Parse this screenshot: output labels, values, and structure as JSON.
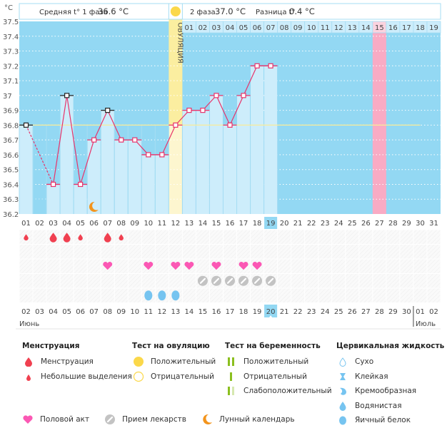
{
  "chart_data": {
    "type": "line",
    "title": "",
    "ylabel": "°C",
    "ylim": [
      36.2,
      37.5
    ],
    "yticks": [
      "37.5",
      "37.4",
      "37.3",
      "37.2",
      "37.1",
      "37",
      "36.9",
      "36.8",
      "36.7",
      "36.6",
      "36.5",
      "36.4",
      "36.3",
      "36.2"
    ],
    "cycle_days": [
      "01",
      "02",
      "03",
      "04",
      "05",
      "06",
      "07",
      "08",
      "09",
      "10",
      "11",
      "12",
      "13",
      "14",
      "15",
      "16",
      "17",
      "18",
      "19",
      "20",
      "21",
      "22",
      "23",
      "24",
      "25",
      "26",
      "27",
      "28",
      "29",
      "30",
      "31"
    ],
    "phase2_days": [
      "01",
      "02",
      "03",
      "04",
      "05",
      "06",
      "07",
      "08",
      "09",
      "10",
      "11",
      "12",
      "13",
      "14",
      "15",
      "16",
      "17",
      "18",
      "19"
    ],
    "calendar_dates": [
      "02",
      "03",
      "04",
      "05",
      "06",
      "07",
      "08",
      "09",
      "10",
      "11",
      "12",
      "13",
      "14",
      "15",
      "16",
      "17",
      "18",
      "19",
      "20",
      "21",
      "22",
      "23",
      "24",
      "25",
      "26",
      "27",
      "28",
      "29",
      "30",
      "01",
      "02"
    ],
    "weekend_dates_idx": [
      0,
      1,
      7,
      8,
      14,
      15,
      21,
      22,
      28,
      29
    ],
    "today_calendar_idx": 18,
    "current_cycle_day_idx": 18,
    "months": [
      {
        "label": "Июнь"
      },
      {
        "label": "Июль"
      }
    ],
    "ovulation_day_idx": 11,
    "ovulation_label": "ОВУЛЯЦИЯ",
    "expected_period_day_idx": 26,
    "coverline": 36.8,
    "temperatures": [
      36.8,
      null,
      36.4,
      37.0,
      36.4,
      36.7,
      36.9,
      36.7,
      36.7,
      36.6,
      36.6,
      36.8,
      36.9,
      36.9,
      37.0,
      36.8,
      37.0,
      37.2,
      37.2
    ],
    "excluded_points_idx": [
      0,
      3,
      6
    ],
    "dashed_segments": [
      [
        0,
        2
      ]
    ],
    "menstruation": [
      {
        "day_idx": 0,
        "type": "spotting"
      },
      {
        "day_idx": 2,
        "type": "menstruation"
      },
      {
        "day_idx": 3,
        "type": "menstruation"
      },
      {
        "day_idx": 4,
        "type": "spotting"
      },
      {
        "day_idx": 6,
        "type": "menstruation"
      },
      {
        "day_idx": 7,
        "type": "spotting"
      }
    ],
    "intercourse_idx": [
      6,
      9,
      11,
      12,
      14,
      16,
      17
    ],
    "medication_idx": [
      13,
      14,
      15,
      16,
      17,
      18
    ],
    "cervical_fluid": [
      {
        "day_idx": 9,
        "type": "egg-white"
      },
      {
        "day_idx": 10,
        "type": "egg-white"
      },
      {
        "day_idx": 11,
        "type": "egg-white"
      }
    ],
    "lunar_idx": [
      5
    ]
  },
  "header": {
    "unit": "°C",
    "phase1_label": "Средняя t° 1 фаза",
    "phase1_value": "36.6 °C",
    "phase2_label": "2 фаза",
    "phase2_value": "37.0 °C",
    "diff_label": "Разница t°",
    "diff_value": "0.4 °C"
  },
  "legend": {
    "menstruation": {
      "title": "Менструация",
      "items": [
        "Менструация",
        "Небольшие выделения"
      ]
    },
    "ovulation_test": {
      "title": "Тест на овуляцию",
      "items": [
        "Положительный",
        "Отрицательный"
      ]
    },
    "pregnancy_test": {
      "title": "Тест на беременность",
      "items": [
        "Положительный",
        "Отрицательный",
        "Слабоположительный"
      ]
    },
    "cervical_fluid": {
      "title": "Цервикальная жидкость",
      "items": [
        "Сухо",
        "Клейкая",
        "Кремообразная",
        "Водянистая",
        "Яичный белок"
      ]
    },
    "other": [
      "Половой акт",
      "Прием лекарств",
      "Лунный календарь"
    ]
  },
  "colors": {
    "sky": "#93d8f3",
    "bar": "#cdedfb",
    "line": "#e8336a",
    "ovulation": "#fbeea0",
    "period": "#f9abc4",
    "coverline": "#f8ec9a",
    "weekend": "#e8336a",
    "blood": "#f04050",
    "heart": "#fb58b4",
    "pill": "#c3c3c3",
    "cf": "#76c4f0",
    "moon": "#f3941c",
    "sun": "#fbd84a",
    "green": "#8bbf1f"
  }
}
